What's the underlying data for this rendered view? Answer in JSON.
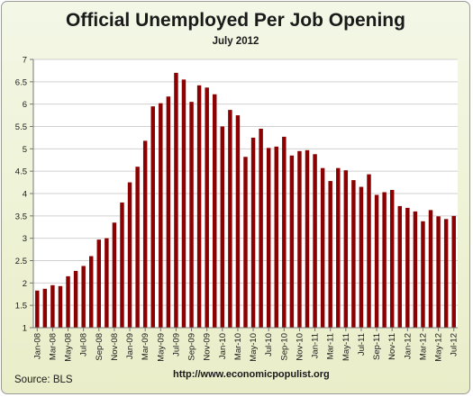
{
  "chart_data": {
    "type": "bar",
    "title": "Official Unemployed Per Job Opening",
    "subtitle": "July 2012",
    "xlabel": "",
    "ylabel": "",
    "ylim": [
      1,
      7
    ],
    "yticks": [
      "1",
      "1.5",
      "2",
      "2.5",
      "3",
      "3.5",
      "4",
      "4.5",
      "5",
      "5.5",
      "6",
      "6.5",
      "7"
    ],
    "grid": true,
    "bar_color": "#8b0000",
    "categories": [
      "Jan-08",
      "Feb-08",
      "Mar-08",
      "Apr-08",
      "May-08",
      "Jun-08",
      "Jul-08",
      "Aug-08",
      "Sep-08",
      "Oct-08",
      "Nov-08",
      "Dec-08",
      "Jan-09",
      "Feb-09",
      "Mar-09",
      "Apr-09",
      "May-09",
      "Jun-09",
      "Jul-09",
      "Aug-09",
      "Sep-09",
      "Oct-09",
      "Nov-09",
      "Dec-09",
      "Jan-10",
      "Feb-10",
      "Mar-10",
      "Apr-10",
      "May-10",
      "Jun-10",
      "Jul-10",
      "Aug-10",
      "Sep-10",
      "Oct-10",
      "Nov-10",
      "Dec-10",
      "Jan-11",
      "Feb-11",
      "Mar-11",
      "Apr-11",
      "May-11",
      "Jun-11",
      "Jul-11",
      "Aug-11",
      "Sep-11",
      "Oct-11",
      "Nov-11",
      "Dec-11",
      "Jan-12",
      "Feb-12",
      "Mar-12",
      "Apr-12",
      "May-12",
      "Jun-12",
      "Jul-12"
    ],
    "x_tick_labels": [
      "Jan-08",
      "Mar-08",
      "May-08",
      "Jul-08",
      "Sep-08",
      "Nov-08",
      "Jan-09",
      "Mar-09",
      "May-09",
      "Jul-09",
      "Sep-09",
      "Nov-09",
      "Jan-10",
      "Mar-10",
      "May-10",
      "Jul-10",
      "Sep-10",
      "Nov-10",
      "Jan-11",
      "Mar-11",
      "May-11",
      "Jul-11",
      "Sep-11",
      "Nov-11",
      "Jan-12",
      "Mar-12",
      "May-12",
      "Jul-12"
    ],
    "values": [
      1.83,
      1.87,
      1.95,
      1.93,
      2.15,
      2.27,
      2.38,
      2.6,
      2.97,
      3.0,
      3.35,
      3.8,
      4.25,
      4.6,
      5.18,
      5.95,
      6.02,
      6.17,
      6.7,
      6.55,
      6.05,
      6.42,
      6.37,
      6.22,
      5.5,
      5.87,
      5.75,
      4.82,
      5.25,
      5.45,
      5.02,
      5.05,
      5.27,
      4.85,
      4.95,
      4.97,
      4.88,
      4.57,
      4.28,
      4.57,
      4.52,
      4.3,
      4.15,
      4.43,
      3.97,
      4.03,
      4.08,
      3.72,
      3.68,
      3.6,
      3.38,
      3.63,
      3.49,
      3.43,
      3.5
    ]
  },
  "footer": {
    "source": "Source:  BLS",
    "url": "http://www.economicpopulist.org"
  }
}
